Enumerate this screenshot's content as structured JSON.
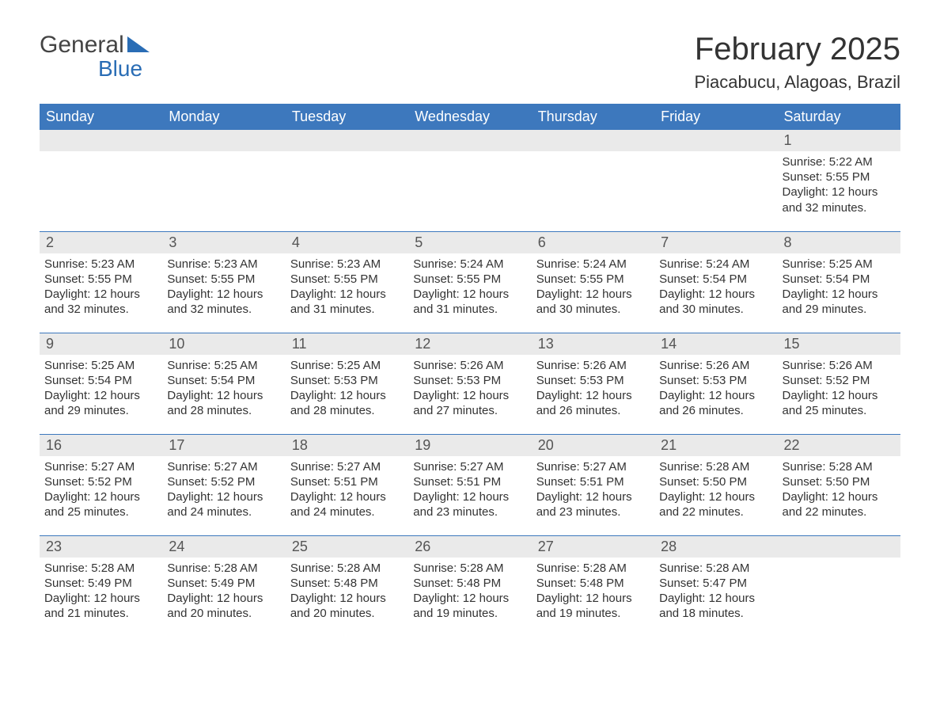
{
  "brand": {
    "general": "General",
    "blue": "Blue",
    "brand_color": "#2a6db5"
  },
  "title": "February 2025",
  "location": "Piacabucu, Alagoas, Brazil",
  "colors": {
    "header_bg": "#3d78bd",
    "header_text": "#ffffff",
    "daynum_bg": "#eaeaea",
    "rule": "#3d78bd",
    "body_text": "#333333",
    "page_bg": "#ffffff"
  },
  "typography": {
    "title_fontsize": 40,
    "location_fontsize": 22,
    "weekday_fontsize": 18,
    "daynum_fontsize": 18,
    "body_fontsize": 15
  },
  "weekdays": [
    "Sunday",
    "Monday",
    "Tuesday",
    "Wednesday",
    "Thursday",
    "Friday",
    "Saturday"
  ],
  "layout": {
    "columns": 7,
    "rows": 5,
    "first_weekday_index": 6
  },
  "weeks": [
    [
      null,
      null,
      null,
      null,
      null,
      null,
      {
        "day": "1",
        "sunrise": "Sunrise: 5:22 AM",
        "sunset": "Sunset: 5:55 PM",
        "daylight": "Daylight: 12 hours and 32 minutes."
      }
    ],
    [
      {
        "day": "2",
        "sunrise": "Sunrise: 5:23 AM",
        "sunset": "Sunset: 5:55 PM",
        "daylight": "Daylight: 12 hours and 32 minutes."
      },
      {
        "day": "3",
        "sunrise": "Sunrise: 5:23 AM",
        "sunset": "Sunset: 5:55 PM",
        "daylight": "Daylight: 12 hours and 32 minutes."
      },
      {
        "day": "4",
        "sunrise": "Sunrise: 5:23 AM",
        "sunset": "Sunset: 5:55 PM",
        "daylight": "Daylight: 12 hours and 31 minutes."
      },
      {
        "day": "5",
        "sunrise": "Sunrise: 5:24 AM",
        "sunset": "Sunset: 5:55 PM",
        "daylight": "Daylight: 12 hours and 31 minutes."
      },
      {
        "day": "6",
        "sunrise": "Sunrise: 5:24 AM",
        "sunset": "Sunset: 5:55 PM",
        "daylight": "Daylight: 12 hours and 30 minutes."
      },
      {
        "day": "7",
        "sunrise": "Sunrise: 5:24 AM",
        "sunset": "Sunset: 5:54 PM",
        "daylight": "Daylight: 12 hours and 30 minutes."
      },
      {
        "day": "8",
        "sunrise": "Sunrise: 5:25 AM",
        "sunset": "Sunset: 5:54 PM",
        "daylight": "Daylight: 12 hours and 29 minutes."
      }
    ],
    [
      {
        "day": "9",
        "sunrise": "Sunrise: 5:25 AM",
        "sunset": "Sunset: 5:54 PM",
        "daylight": "Daylight: 12 hours and 29 minutes."
      },
      {
        "day": "10",
        "sunrise": "Sunrise: 5:25 AM",
        "sunset": "Sunset: 5:54 PM",
        "daylight": "Daylight: 12 hours and 28 minutes."
      },
      {
        "day": "11",
        "sunrise": "Sunrise: 5:25 AM",
        "sunset": "Sunset: 5:53 PM",
        "daylight": "Daylight: 12 hours and 28 minutes."
      },
      {
        "day": "12",
        "sunrise": "Sunrise: 5:26 AM",
        "sunset": "Sunset: 5:53 PM",
        "daylight": "Daylight: 12 hours and 27 minutes."
      },
      {
        "day": "13",
        "sunrise": "Sunrise: 5:26 AM",
        "sunset": "Sunset: 5:53 PM",
        "daylight": "Daylight: 12 hours and 26 minutes."
      },
      {
        "day": "14",
        "sunrise": "Sunrise: 5:26 AM",
        "sunset": "Sunset: 5:53 PM",
        "daylight": "Daylight: 12 hours and 26 minutes."
      },
      {
        "day": "15",
        "sunrise": "Sunrise: 5:26 AM",
        "sunset": "Sunset: 5:52 PM",
        "daylight": "Daylight: 12 hours and 25 minutes."
      }
    ],
    [
      {
        "day": "16",
        "sunrise": "Sunrise: 5:27 AM",
        "sunset": "Sunset: 5:52 PM",
        "daylight": "Daylight: 12 hours and 25 minutes."
      },
      {
        "day": "17",
        "sunrise": "Sunrise: 5:27 AM",
        "sunset": "Sunset: 5:52 PM",
        "daylight": "Daylight: 12 hours and 24 minutes."
      },
      {
        "day": "18",
        "sunrise": "Sunrise: 5:27 AM",
        "sunset": "Sunset: 5:51 PM",
        "daylight": "Daylight: 12 hours and 24 minutes."
      },
      {
        "day": "19",
        "sunrise": "Sunrise: 5:27 AM",
        "sunset": "Sunset: 5:51 PM",
        "daylight": "Daylight: 12 hours and 23 minutes."
      },
      {
        "day": "20",
        "sunrise": "Sunrise: 5:27 AM",
        "sunset": "Sunset: 5:51 PM",
        "daylight": "Daylight: 12 hours and 23 minutes."
      },
      {
        "day": "21",
        "sunrise": "Sunrise: 5:28 AM",
        "sunset": "Sunset: 5:50 PM",
        "daylight": "Daylight: 12 hours and 22 minutes."
      },
      {
        "day": "22",
        "sunrise": "Sunrise: 5:28 AM",
        "sunset": "Sunset: 5:50 PM",
        "daylight": "Daylight: 12 hours and 22 minutes."
      }
    ],
    [
      {
        "day": "23",
        "sunrise": "Sunrise: 5:28 AM",
        "sunset": "Sunset: 5:49 PM",
        "daylight": "Daylight: 12 hours and 21 minutes."
      },
      {
        "day": "24",
        "sunrise": "Sunrise: 5:28 AM",
        "sunset": "Sunset: 5:49 PM",
        "daylight": "Daylight: 12 hours and 20 minutes."
      },
      {
        "day": "25",
        "sunrise": "Sunrise: 5:28 AM",
        "sunset": "Sunset: 5:48 PM",
        "daylight": "Daylight: 12 hours and 20 minutes."
      },
      {
        "day": "26",
        "sunrise": "Sunrise: 5:28 AM",
        "sunset": "Sunset: 5:48 PM",
        "daylight": "Daylight: 12 hours and 19 minutes."
      },
      {
        "day": "27",
        "sunrise": "Sunrise: 5:28 AM",
        "sunset": "Sunset: 5:48 PM",
        "daylight": "Daylight: 12 hours and 19 minutes."
      },
      {
        "day": "28",
        "sunrise": "Sunrise: 5:28 AM",
        "sunset": "Sunset: 5:47 PM",
        "daylight": "Daylight: 12 hours and 18 minutes."
      },
      null
    ]
  ]
}
